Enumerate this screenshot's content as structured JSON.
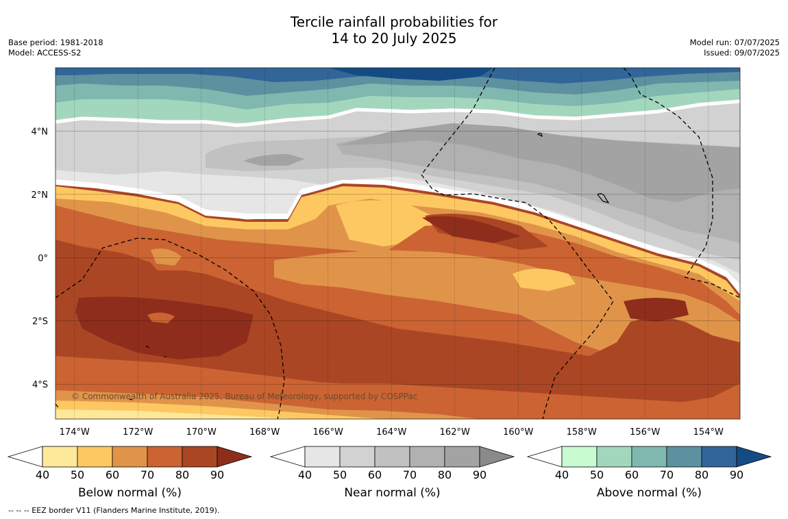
{
  "title_line1": "Tercile rainfall probabilities for",
  "title_line2": "14 to 20 July 2025",
  "base_period": "Base period: 1981-2018",
  "model": "Model: ACCESS-S2",
  "model_run": "Model run: 07/07/2025",
  "issued": "Issued: 09/07/2025",
  "copyright": "© Commonwealth of Australia 2025, Bureau of Meteorology, supported by COSPPac",
  "footnote": "--  --  -- EEZ border V11 (Flanders Marine Institute, 2019).",
  "map": {
    "lon_range": [
      -174.6,
      -153.0
    ],
    "lat_range": [
      -5.1,
      6.0
    ],
    "lon_ticks": [
      "174°W",
      "172°W",
      "170°W",
      "168°W",
      "166°W",
      "164°W",
      "162°W",
      "160°W",
      "158°W",
      "156°W",
      "154°W"
    ],
    "lon_tick_values": [
      -174,
      -172,
      -170,
      -168,
      -166,
      -164,
      -162,
      -160,
      -158,
      -156,
      -154
    ],
    "lat_ticks": [
      "4°N",
      "2°N",
      "0°",
      "2°S",
      "4°S"
    ],
    "lat_tick_values": [
      4,
      2,
      0,
      -2,
      -4
    ],
    "grid": "dotted meridians, solid parallels"
  },
  "colorbars": [
    {
      "title": "Below normal (%)",
      "labels": [
        "40",
        "50",
        "60",
        "70",
        "80",
        "90"
      ],
      "colors": [
        "#ffffff",
        "#fee89a",
        "#fdc862",
        "#e0944a",
        "#cb6332",
        "#ab4624",
        "#8e2d1b"
      ]
    },
    {
      "title": "Near normal (%)",
      "labels": [
        "40",
        "50",
        "60",
        "70",
        "80",
        "90"
      ],
      "colors": [
        "#ffffff",
        "#e6e6e6",
        "#d2d2d2",
        "#c1c1c1",
        "#b1b1b1",
        "#a3a3a3",
        "#8a8a8a"
      ]
    },
    {
      "title": "Above normal (%)",
      "labels": [
        "40",
        "50",
        "60",
        "70",
        "80",
        "90"
      ],
      "colors": [
        "#ffffff",
        "#c8fbd0",
        "#a3d7bd",
        "#80b8b0",
        "#5d919f",
        "#326598",
        "#154b84"
      ]
    }
  ]
}
